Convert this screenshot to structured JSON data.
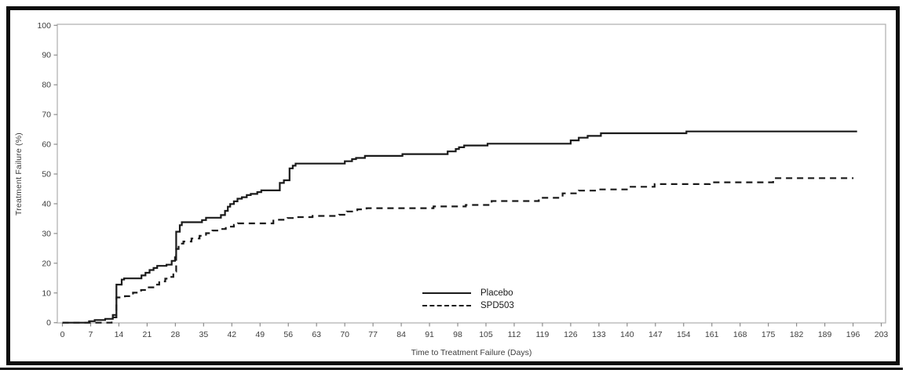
{
  "figure": {
    "background": "#ffffff",
    "border_color": "#0d0d0d",
    "frame_color": "#b3b3b3",
    "tick_color": "#8c8c8c",
    "tick_label_color": "#3d3d3d",
    "curve_color": "#1a1a1a"
  },
  "chart_data": {
    "type": "line",
    "subtype": "kaplan-meier-step",
    "title": "",
    "xlabel": "Time to Treatment Failure (Days)",
    "ylabel": "Treatment Failure (%)",
    "xlim": [
      0,
      203
    ],
    "ylim": [
      0,
      100
    ],
    "grid": false,
    "legend_position": "inside-bottom-center",
    "x_ticks": [
      0,
      7,
      14,
      21,
      28,
      35,
      42,
      49,
      56,
      63,
      70,
      77,
      84,
      91,
      98,
      105,
      112,
      119,
      126,
      133,
      140,
      147,
      154,
      161,
      168,
      175,
      182,
      189,
      196,
      203
    ],
    "y_ticks": [
      0,
      10,
      20,
      30,
      40,
      50,
      60,
      70,
      80,
      90,
      100
    ],
    "series": [
      {
        "name": "Placebo",
        "style": "solid",
        "points": [
          [
            0,
            0
          ],
          [
            6.6,
            0.5
          ],
          [
            8,
            0.9
          ],
          [
            10.6,
            1.3
          ],
          [
            12.5,
            2.6
          ],
          [
            13.4,
            12.8
          ],
          [
            14.7,
            14.5
          ],
          [
            15.3,
            14.9
          ],
          [
            19.6,
            15.9
          ],
          [
            20.6,
            16.8
          ],
          [
            21.6,
            17.7
          ],
          [
            22.6,
            18.4
          ],
          [
            23.5,
            19.1
          ],
          [
            25.8,
            19.5
          ],
          [
            27.1,
            20.8
          ],
          [
            27.9,
            22
          ],
          [
            28.2,
            30.6
          ],
          [
            29.1,
            32.8
          ],
          [
            29.6,
            33.8
          ],
          [
            34.6,
            34.5
          ],
          [
            35.6,
            35.3
          ],
          [
            39.3,
            36.2
          ],
          [
            40.3,
            37.6
          ],
          [
            41,
            39
          ],
          [
            41.6,
            39.9
          ],
          [
            42.5,
            40.8
          ],
          [
            43.4,
            41.7
          ],
          [
            44.5,
            42.2
          ],
          [
            45.7,
            42.9
          ],
          [
            46.7,
            43.3
          ],
          [
            48.3,
            43.9
          ],
          [
            49.3,
            44.5
          ],
          [
            53.9,
            47
          ],
          [
            54.9,
            47.9
          ],
          [
            56.3,
            51.9
          ],
          [
            57.1,
            52.8
          ],
          [
            57.8,
            53.5
          ],
          [
            70,
            54.3
          ],
          [
            71.8,
            55
          ],
          [
            72.8,
            55.4
          ],
          [
            75,
            56.1
          ],
          [
            84.3,
            56.7
          ],
          [
            95.5,
            57.6
          ],
          [
            97.5,
            58.4
          ],
          [
            98.3,
            59
          ],
          [
            99.6,
            59.6
          ],
          [
            105.4,
            60.2
          ],
          [
            126,
            61.3
          ],
          [
            128,
            62.2
          ],
          [
            130.2,
            62.8
          ],
          [
            133.5,
            63.7
          ],
          [
            154.7,
            64.3
          ],
          [
            197,
            64.3
          ]
        ]
      },
      {
        "name": "SPD503",
        "style": "dashed",
        "points": [
          [
            0,
            0
          ],
          [
            12.2,
            1.8
          ],
          [
            13.4,
            8.5
          ],
          [
            15.5,
            8.9
          ],
          [
            17.5,
            10.1
          ],
          [
            19.5,
            11
          ],
          [
            21,
            11.9
          ],
          [
            23,
            12.8
          ],
          [
            24,
            13.9
          ],
          [
            25.5,
            14.8
          ],
          [
            26.5,
            15.4
          ],
          [
            27.5,
            17.2
          ],
          [
            28.2,
            24.8
          ],
          [
            28.8,
            26.6
          ],
          [
            30,
            27.3
          ],
          [
            32,
            28.3
          ],
          [
            34,
            29.2
          ],
          [
            35.6,
            30.1
          ],
          [
            37.2,
            31
          ],
          [
            38.9,
            31.5
          ],
          [
            40.5,
            32.3
          ],
          [
            42.5,
            32.9
          ],
          [
            43.5,
            33.4
          ],
          [
            52.3,
            34.6
          ],
          [
            55.8,
            35.2
          ],
          [
            58,
            35.5
          ],
          [
            62,
            35.9
          ],
          [
            68.6,
            36.3
          ],
          [
            70.5,
            37.4
          ],
          [
            73.1,
            38.1
          ],
          [
            75.4,
            38.5
          ],
          [
            92,
            39.1
          ],
          [
            100,
            39.6
          ],
          [
            106.4,
            40.9
          ],
          [
            118.1,
            42
          ],
          [
            124,
            43.5
          ],
          [
            128,
            44.4
          ],
          [
            133.1,
            44.8
          ],
          [
            140.3,
            45.7
          ],
          [
            146.8,
            46.6
          ],
          [
            160.5,
            47.2
          ],
          [
            176.2,
            48.6
          ],
          [
            196.1,
            48.6
          ]
        ]
      }
    ]
  }
}
